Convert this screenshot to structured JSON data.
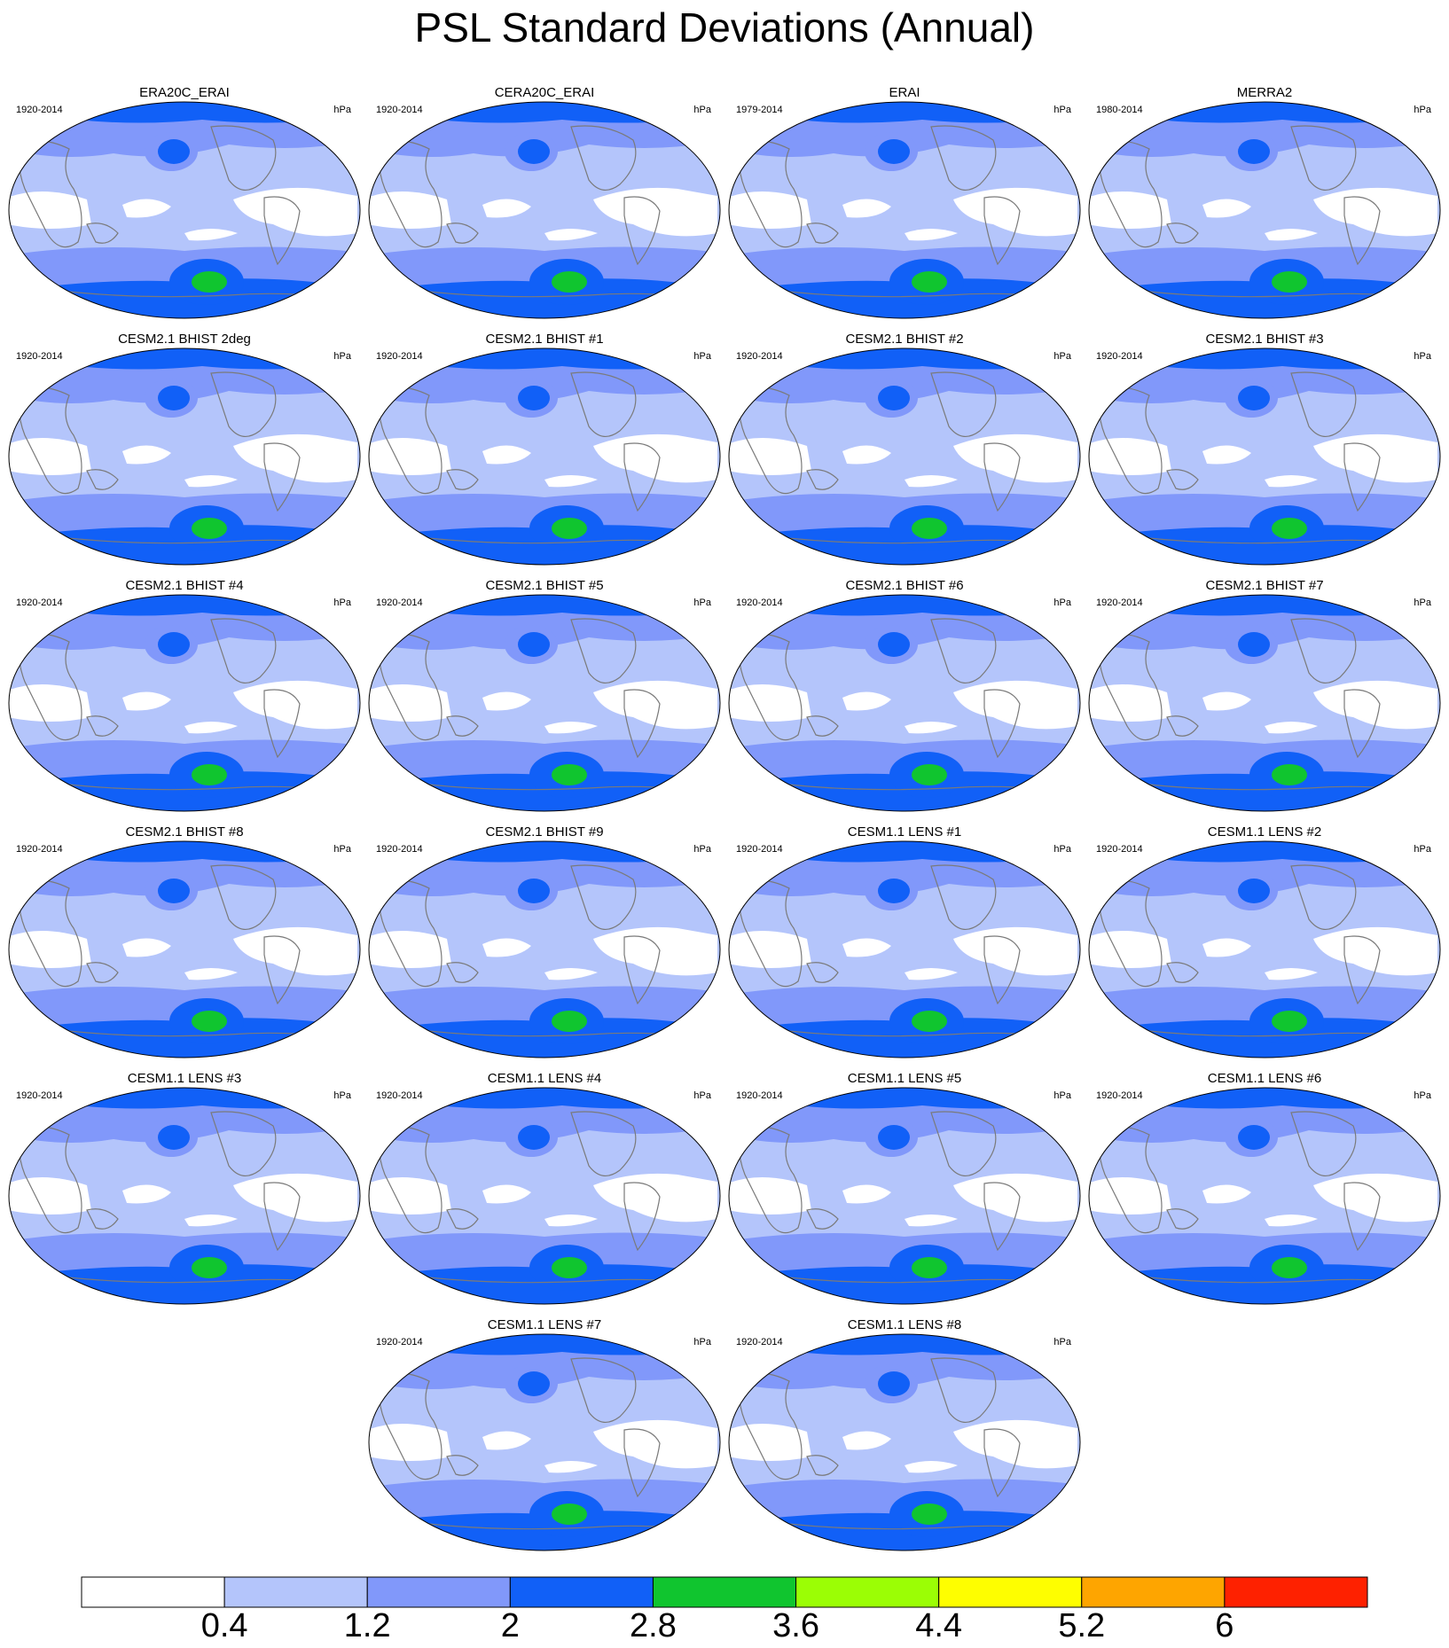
{
  "title": "PSL Standard Deviations (Annual)",
  "units": "hPa",
  "colorbar": {
    "labels": [
      "0.4",
      "1.2",
      "2",
      "2.8",
      "3.6",
      "4.4",
      "5.2",
      "6"
    ],
    "colors": [
      "#ffffff",
      "#b4c5fb",
      "#8198fa",
      "#1160f7",
      "#10c52f",
      "#9bfe05",
      "#fefe00",
      "#fea500",
      "#fe2100"
    ]
  },
  "panels": [
    {
      "title": "ERA20C_ERAI",
      "period": "1920-2014"
    },
    {
      "title": "CERA20C_ERAI",
      "period": "1920-2014"
    },
    {
      "title": "ERAI",
      "period": "1979-2014"
    },
    {
      "title": "MERRA2",
      "period": "1980-2014"
    },
    {
      "title": "CESM2.1 BHIST 2deg",
      "period": "1920-2014"
    },
    {
      "title": "CESM2.1 BHIST #1",
      "period": "1920-2014"
    },
    {
      "title": "CESM2.1 BHIST #2",
      "period": "1920-2014"
    },
    {
      "title": "CESM2.1 BHIST #3",
      "period": "1920-2014"
    },
    {
      "title": "CESM2.1 BHIST #4",
      "period": "1920-2014"
    },
    {
      "title": "CESM2.1 BHIST #5",
      "period": "1920-2014"
    },
    {
      "title": "CESM2.1 BHIST #6",
      "period": "1920-2014"
    },
    {
      "title": "CESM2.1 BHIST #7",
      "period": "1920-2014"
    },
    {
      "title": "CESM2.1 BHIST #8",
      "period": "1920-2014"
    },
    {
      "title": "CESM2.1 BHIST #9",
      "period": "1920-2014"
    },
    {
      "title": "CESM1.1 LENS #1",
      "period": "1920-2014"
    },
    {
      "title": "CESM1.1 LENS #2",
      "period": "1920-2014"
    },
    {
      "title": "CESM1.1 LENS #3",
      "period": "1920-2014"
    },
    {
      "title": "CESM1.1 LENS #4",
      "period": "1920-2014"
    },
    {
      "title": "CESM1.1 LENS #5",
      "period": "1920-2014"
    },
    {
      "title": "CESM1.1 LENS #6",
      "period": "1920-2014"
    },
    {
      "title": "CESM1.1 LENS #7",
      "period": "1920-2014"
    },
    {
      "title": "CESM1.1 LENS #8",
      "period": "1920-2014"
    }
  ]
}
